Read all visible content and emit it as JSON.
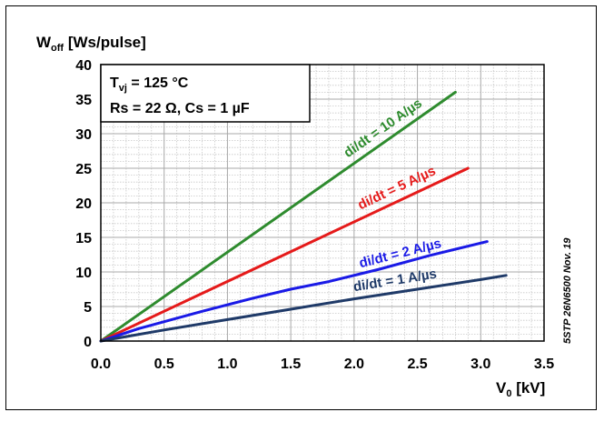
{
  "chart_data": {
    "type": "line",
    "title": "",
    "ylabel": {
      "main": "W",
      "sub": "off",
      "rest": " [Ws/pulse]"
    },
    "xlabel": {
      "main": "V",
      "sub": "0",
      "rest": " [kV]"
    },
    "xlim": [
      0,
      3.5
    ],
    "ylim": [
      0,
      40
    ],
    "x_ticks": [
      "0.0",
      "0.5",
      "1.0",
      "1.5",
      "2.0",
      "2.5",
      "3.0",
      "3.5"
    ],
    "y_ticks": [
      "0",
      "5",
      "10",
      "15",
      "20",
      "25",
      "30",
      "35",
      "40"
    ],
    "grid": true,
    "conditions": {
      "line1_main": "T",
      "line1_sub": "vj",
      "line1_rest": " = 125 °C",
      "line2": "Rs = 22 Ω, Cs = 1 µF"
    },
    "side_note": "5STP 26N6500 Nov. 19",
    "series": [
      {
        "name": "di/dt = 10 A/µs",
        "color": "#2e8b2e",
        "x": [
          0,
          2.8
        ],
        "y": [
          0,
          36
        ]
      },
      {
        "name": "di/dt = 5 A/µs",
        "color": "#e51a1a",
        "x": [
          0,
          2.9
        ],
        "y": [
          0,
          25
        ]
      },
      {
        "name": "di/dt = 2 A/µs",
        "color": "#1a1ae6",
        "x": [
          0,
          0.3,
          0.8,
          1.2,
          1.5,
          1.8,
          2.2,
          2.6,
          3.05
        ],
        "y": [
          0,
          1.8,
          4.3,
          6.2,
          7.5,
          8.6,
          10.4,
          12.4,
          14.4
        ]
      },
      {
        "name": "di/dt = 1 A/µs",
        "color": "#1f3a68",
        "x": [
          0,
          0.5,
          1.0,
          1.5,
          2.0,
          2.5,
          3.0,
          3.2
        ],
        "y": [
          0,
          1.6,
          3.1,
          4.6,
          6.1,
          7.5,
          8.9,
          9.5
        ]
      }
    ],
    "series_label_positions": [
      {
        "x": 1.95,
        "y": 26.5
      },
      {
        "x": 2.05,
        "y": 19.0
      },
      {
        "x": 2.05,
        "y": 10.6
      },
      {
        "x": 2.0,
        "y": 7.2
      }
    ]
  }
}
